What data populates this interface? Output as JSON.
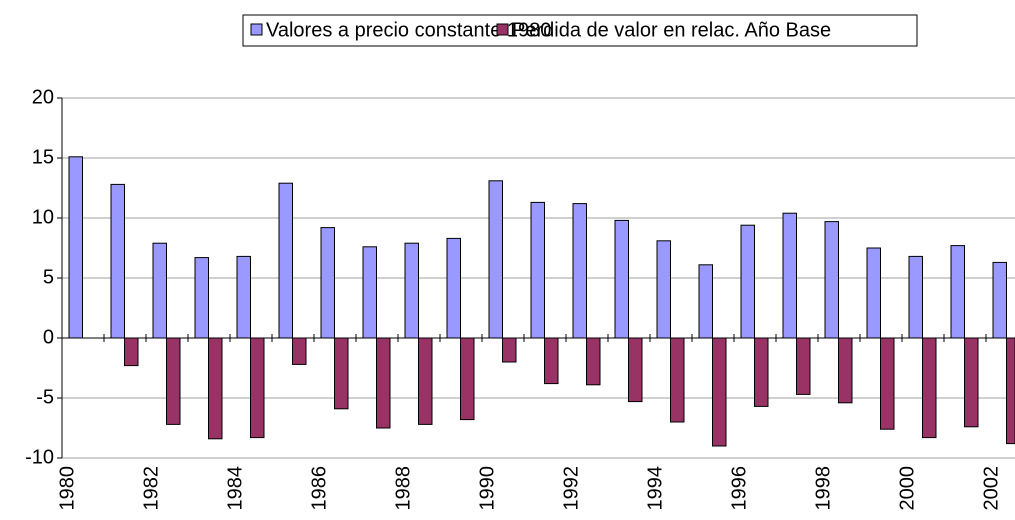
{
  "chart_data": {
    "type": "bar",
    "categories": [
      "1980",
      null,
      "1982",
      null,
      "1984",
      null,
      "1986",
      null,
      "1988",
      null,
      "1990",
      null,
      "1992",
      null,
      "1994",
      null,
      "1996",
      null,
      "1998",
      null,
      "2000",
      null,
      "2002"
    ],
    "series": [
      {
        "name": "Valores a precio constante 1980",
        "color": "#9999ff",
        "values": [
          15.1,
          12.8,
          7.9,
          6.7,
          6.8,
          12.9,
          9.2,
          7.6,
          7.9,
          8.3,
          13.1,
          11.3,
          11.2,
          9.8,
          8.1,
          6.1,
          9.4,
          10.4,
          9.7,
          7.5,
          6.8,
          7.7,
          6.3
        ]
      },
      {
        "name": "Perdida de valor en relac. Año Base",
        "color": "#993366",
        "values": [
          0,
          -2.3,
          -7.2,
          -8.4,
          -8.3,
          -2.2,
          -5.9,
          -7.5,
          -7.2,
          -6.8,
          -2.0,
          -3.8,
          -3.9,
          -5.3,
          -7.0,
          -9.0,
          -5.7,
          -4.7,
          -5.4,
          -7.6,
          -8.3,
          -7.4,
          -8.8
        ]
      }
    ],
    "ylim": [
      -10,
      20
    ],
    "yticks": [
      -10,
      -5,
      0,
      5,
      10,
      15,
      20
    ],
    "grid": true,
    "legend": "top"
  }
}
